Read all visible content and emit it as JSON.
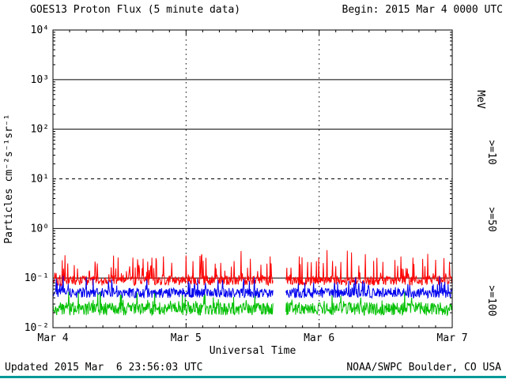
{
  "header": {
    "title": "GOES13 Proton Flux (5 minute data)",
    "begin_label": "Begin: 2015 Mar 4 0000 UTC"
  },
  "footer": {
    "updated": "Updated 2015 Mar  6 23:56:03 UTC",
    "attribution": "NOAA/SWPC Boulder, CO USA",
    "bar_color": "#009898"
  },
  "chart_data": {
    "type": "line",
    "title": "GOES13 Proton Flux (5 minute data)",
    "xlabel": "Universal Time",
    "ylabel": "Particles cm⁻²s⁻¹sr⁻¹",
    "right_axis_label": "MeV",
    "x_range_hours": [
      0,
      72
    ],
    "x_tick_hours": [
      0,
      24,
      48,
      72
    ],
    "x_tick_labels": [
      "Mar 4",
      "Mar 5",
      "Mar 6",
      "Mar 7"
    ],
    "x_minor_tick_hours": 3,
    "y_log_range": [
      -2,
      4
    ],
    "y_tick_exponents": [
      4,
      3,
      2,
      1,
      0,
      -1,
      -2
    ],
    "y_tick_labels": [
      "10⁴",
      "10³",
      "10²",
      "10¹",
      "10⁰",
      "10⁻¹",
      "10⁻²"
    ],
    "ylim": [
      0.01,
      10000
    ],
    "grid_on": true,
    "legend_position": "right",
    "gridlines": {
      "solid_exponents": [
        3,
        2,
        0,
        -1
      ],
      "dashed_exponents": [
        1
      ],
      "vertical_dotted_hours": [
        24,
        48
      ]
    },
    "gap_hours": [
      39.75,
      42.0
    ],
    "sample_interval_minutes": 5,
    "series": [
      {
        "name": "gte10",
        "label": ">=10",
        "color": "#ff0000",
        "log10_mean": -1.05,
        "log10_sigma": 0.1,
        "spike_log10": 0.55,
        "spike_prob": 0.15,
        "typical_flux_range": [
          0.07,
          0.35
        ],
        "seed": 101
      },
      {
        "name": "gte50",
        "label": ">=50",
        "color": "#0000ee",
        "log10_mean": -1.3,
        "log10_sigma": 0.1,
        "spike_log10": 0.3,
        "spike_prob": 0.12,
        "typical_flux_range": [
          0.04,
          0.12
        ],
        "seed": 202
      },
      {
        "name": "gte100",
        "label": ">=100",
        "color": "#00c000",
        "log10_mean": -1.62,
        "log10_sigma": 0.13,
        "spike_log10": 0.25,
        "spike_prob": 0.12,
        "typical_flux_range": [
          0.015,
          0.05
        ],
        "seed": 303
      }
    ]
  }
}
